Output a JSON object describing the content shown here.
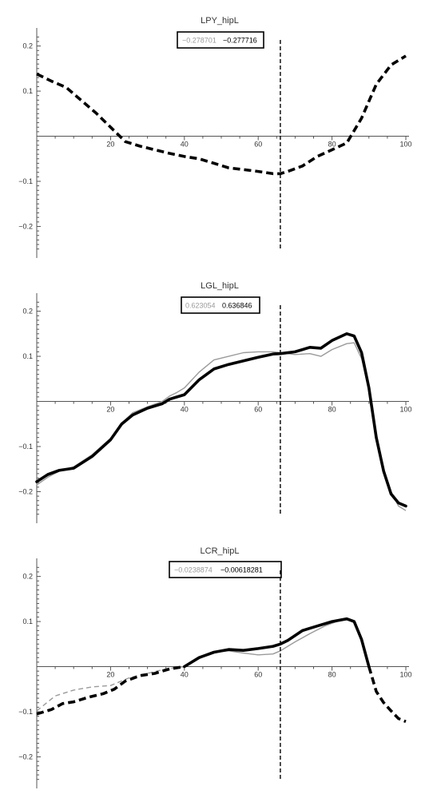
{
  "chart_data": [
    {
      "type": "line",
      "title": "LPY_hipL",
      "xlim": [
        0,
        100
      ],
      "ylim": [
        -0.27,
        0.24
      ],
      "x_ticks": [
        20,
        40,
        60,
        80,
        100
      ],
      "y_ticks": [
        0.2,
        0.1,
        -0.1,
        -0.2
      ],
      "x_tick_labels": [
        "20",
        "40",
        "60",
        "80",
        "100"
      ],
      "y_tick_labels": [
        "0.2",
        "0.1",
        "-0.1",
        "-0.2"
      ],
      "cursor_x": 66,
      "readout_left": "-0.278701",
      "readout_right": "-0.277716",
      "series": [
        {
          "style": "dashed",
          "color": "#000000",
          "x": [
            0,
            4,
            8,
            12,
            16,
            20,
            24,
            28,
            32,
            36,
            40,
            44,
            48,
            52,
            56,
            60,
            64,
            66,
            68,
            72,
            76,
            80,
            84,
            88,
            92,
            96,
            100
          ],
          "y": [
            0.138,
            0.122,
            0.108,
            0.08,
            0.052,
            0.02,
            -0.012,
            -0.022,
            -0.03,
            -0.038,
            -0.045,
            -0.05,
            -0.06,
            -0.07,
            -0.074,
            -0.078,
            -0.083,
            -0.083,
            -0.078,
            -0.066,
            -0.045,
            -0.03,
            -0.015,
            0.04,
            0.115,
            0.158,
            0.178
          ]
        }
      ]
    },
    {
      "type": "line",
      "title": "LGL_hipL",
      "xlim": [
        0,
        100
      ],
      "ylim": [
        -0.27,
        0.24
      ],
      "x_ticks": [
        20,
        40,
        60,
        80,
        100
      ],
      "y_ticks": [
        0.2,
        0.1,
        -0.1,
        -0.2
      ],
      "x_tick_labels": [
        "20",
        "40",
        "60",
        "80",
        "100"
      ],
      "y_tick_labels": [
        "0.2",
        "0.1",
        "-0.1",
        "-0.2"
      ],
      "cursor_x": 66,
      "readout_left": "0.623054",
      "readout_right": "0.636846",
      "series": [
        {
          "style": "thin",
          "color": "#9a9a9a",
          "x": [
            0,
            3,
            6,
            10,
            15,
            20,
            23,
            26,
            30,
            34,
            36,
            38,
            40,
            44,
            48,
            52,
            56,
            60,
            64,
            66,
            70,
            74,
            77,
            80,
            84,
            86,
            88,
            90,
            92,
            94,
            96,
            98,
            100
          ],
          "y": [
            -0.185,
            -0.168,
            -0.155,
            -0.145,
            -0.118,
            -0.082,
            -0.048,
            -0.025,
            -0.012,
            0.0,
            0.012,
            0.02,
            0.03,
            0.065,
            0.092,
            0.1,
            0.108,
            0.11,
            0.11,
            0.108,
            0.104,
            0.106,
            0.1,
            0.115,
            0.128,
            0.13,
            0.095,
            0.025,
            -0.07,
            -0.15,
            -0.2,
            -0.232,
            -0.242
          ]
        },
        {
          "style": "thick",
          "color": "#000000",
          "x": [
            0,
            3,
            6,
            10,
            15,
            20,
            23,
            26,
            30,
            34,
            36,
            38,
            40,
            44,
            48,
            52,
            56,
            60,
            64,
            66,
            70,
            74,
            77,
            80,
            84,
            86,
            88,
            90,
            92,
            94,
            96,
            98,
            100
          ],
          "y": [
            -0.178,
            -0.162,
            -0.153,
            -0.148,
            -0.122,
            -0.085,
            -0.05,
            -0.03,
            -0.015,
            -0.005,
            0.005,
            0.01,
            0.015,
            0.048,
            0.072,
            0.082,
            0.09,
            0.098,
            0.105,
            0.106,
            0.11,
            0.12,
            0.118,
            0.135,
            0.15,
            0.145,
            0.108,
            0.03,
            -0.08,
            -0.155,
            -0.205,
            -0.225,
            -0.232
          ]
        }
      ]
    },
    {
      "type": "line",
      "title": "LCR_hipL",
      "xlim": [
        0,
        100
      ],
      "ylim": [
        -0.27,
        0.24
      ],
      "x_ticks": [
        20,
        40,
        60,
        80,
        100
      ],
      "y_ticks": [
        0.2,
        0.1,
        -0.1,
        -0.2
      ],
      "x_tick_labels": [
        "20",
        "40",
        "60",
        "80",
        "100"
      ],
      "y_tick_labels": [
        "0.2",
        "0.1",
        "-0.1",
        "-0.2"
      ],
      "cursor_x": 66,
      "readout_left": "-0.0238874",
      "readout_right": "-0.00618281",
      "series": [
        {
          "style": "thin-dashed",
          "color": "#9a9a9a",
          "x": [
            0,
            5,
            10,
            15,
            20,
            25,
            30,
            35,
            40
          ],
          "y": [
            -0.098,
            -0.065,
            -0.052,
            -0.045,
            -0.042,
            -0.025,
            -0.015,
            -0.005,
            0.0
          ]
        },
        {
          "style": "thin",
          "color": "#9a9a9a",
          "x": [
            40,
            44,
            48,
            52,
            56,
            60,
            64,
            66,
            70,
            74,
            78,
            82,
            84,
            86,
            88,
            90
          ],
          "y": [
            0.0,
            0.018,
            0.032,
            0.035,
            0.03,
            0.026,
            0.028,
            0.035,
            0.055,
            0.073,
            0.09,
            0.102,
            0.104,
            0.098,
            0.06,
            0.0
          ]
        },
        {
          "style": "dashed",
          "color": "#000000",
          "x": [
            0,
            4,
            7,
            10,
            14,
            18,
            21,
            24,
            28,
            32,
            36,
            40
          ],
          "y": [
            -0.105,
            -0.095,
            -0.082,
            -0.078,
            -0.068,
            -0.06,
            -0.05,
            -0.032,
            -0.02,
            -0.015,
            -0.005,
            0.0
          ]
        },
        {
          "style": "thick",
          "color": "#000000",
          "x": [
            40,
            44,
            48,
            52,
            56,
            60,
            64,
            66,
            68,
            72,
            76,
            80,
            84,
            86,
            88,
            90
          ],
          "y": [
            0.0,
            0.02,
            0.032,
            0.038,
            0.036,
            0.04,
            0.045,
            0.05,
            0.058,
            0.08,
            0.09,
            0.1,
            0.106,
            0.1,
            0.06,
            0.0
          ]
        },
        {
          "style": "dashed",
          "color": "#000000",
          "x": [
            90,
            92,
            94,
            96,
            98,
            100
          ],
          "y": [
            0.0,
            -0.055,
            -0.08,
            -0.098,
            -0.115,
            -0.122
          ]
        }
      ]
    }
  ]
}
